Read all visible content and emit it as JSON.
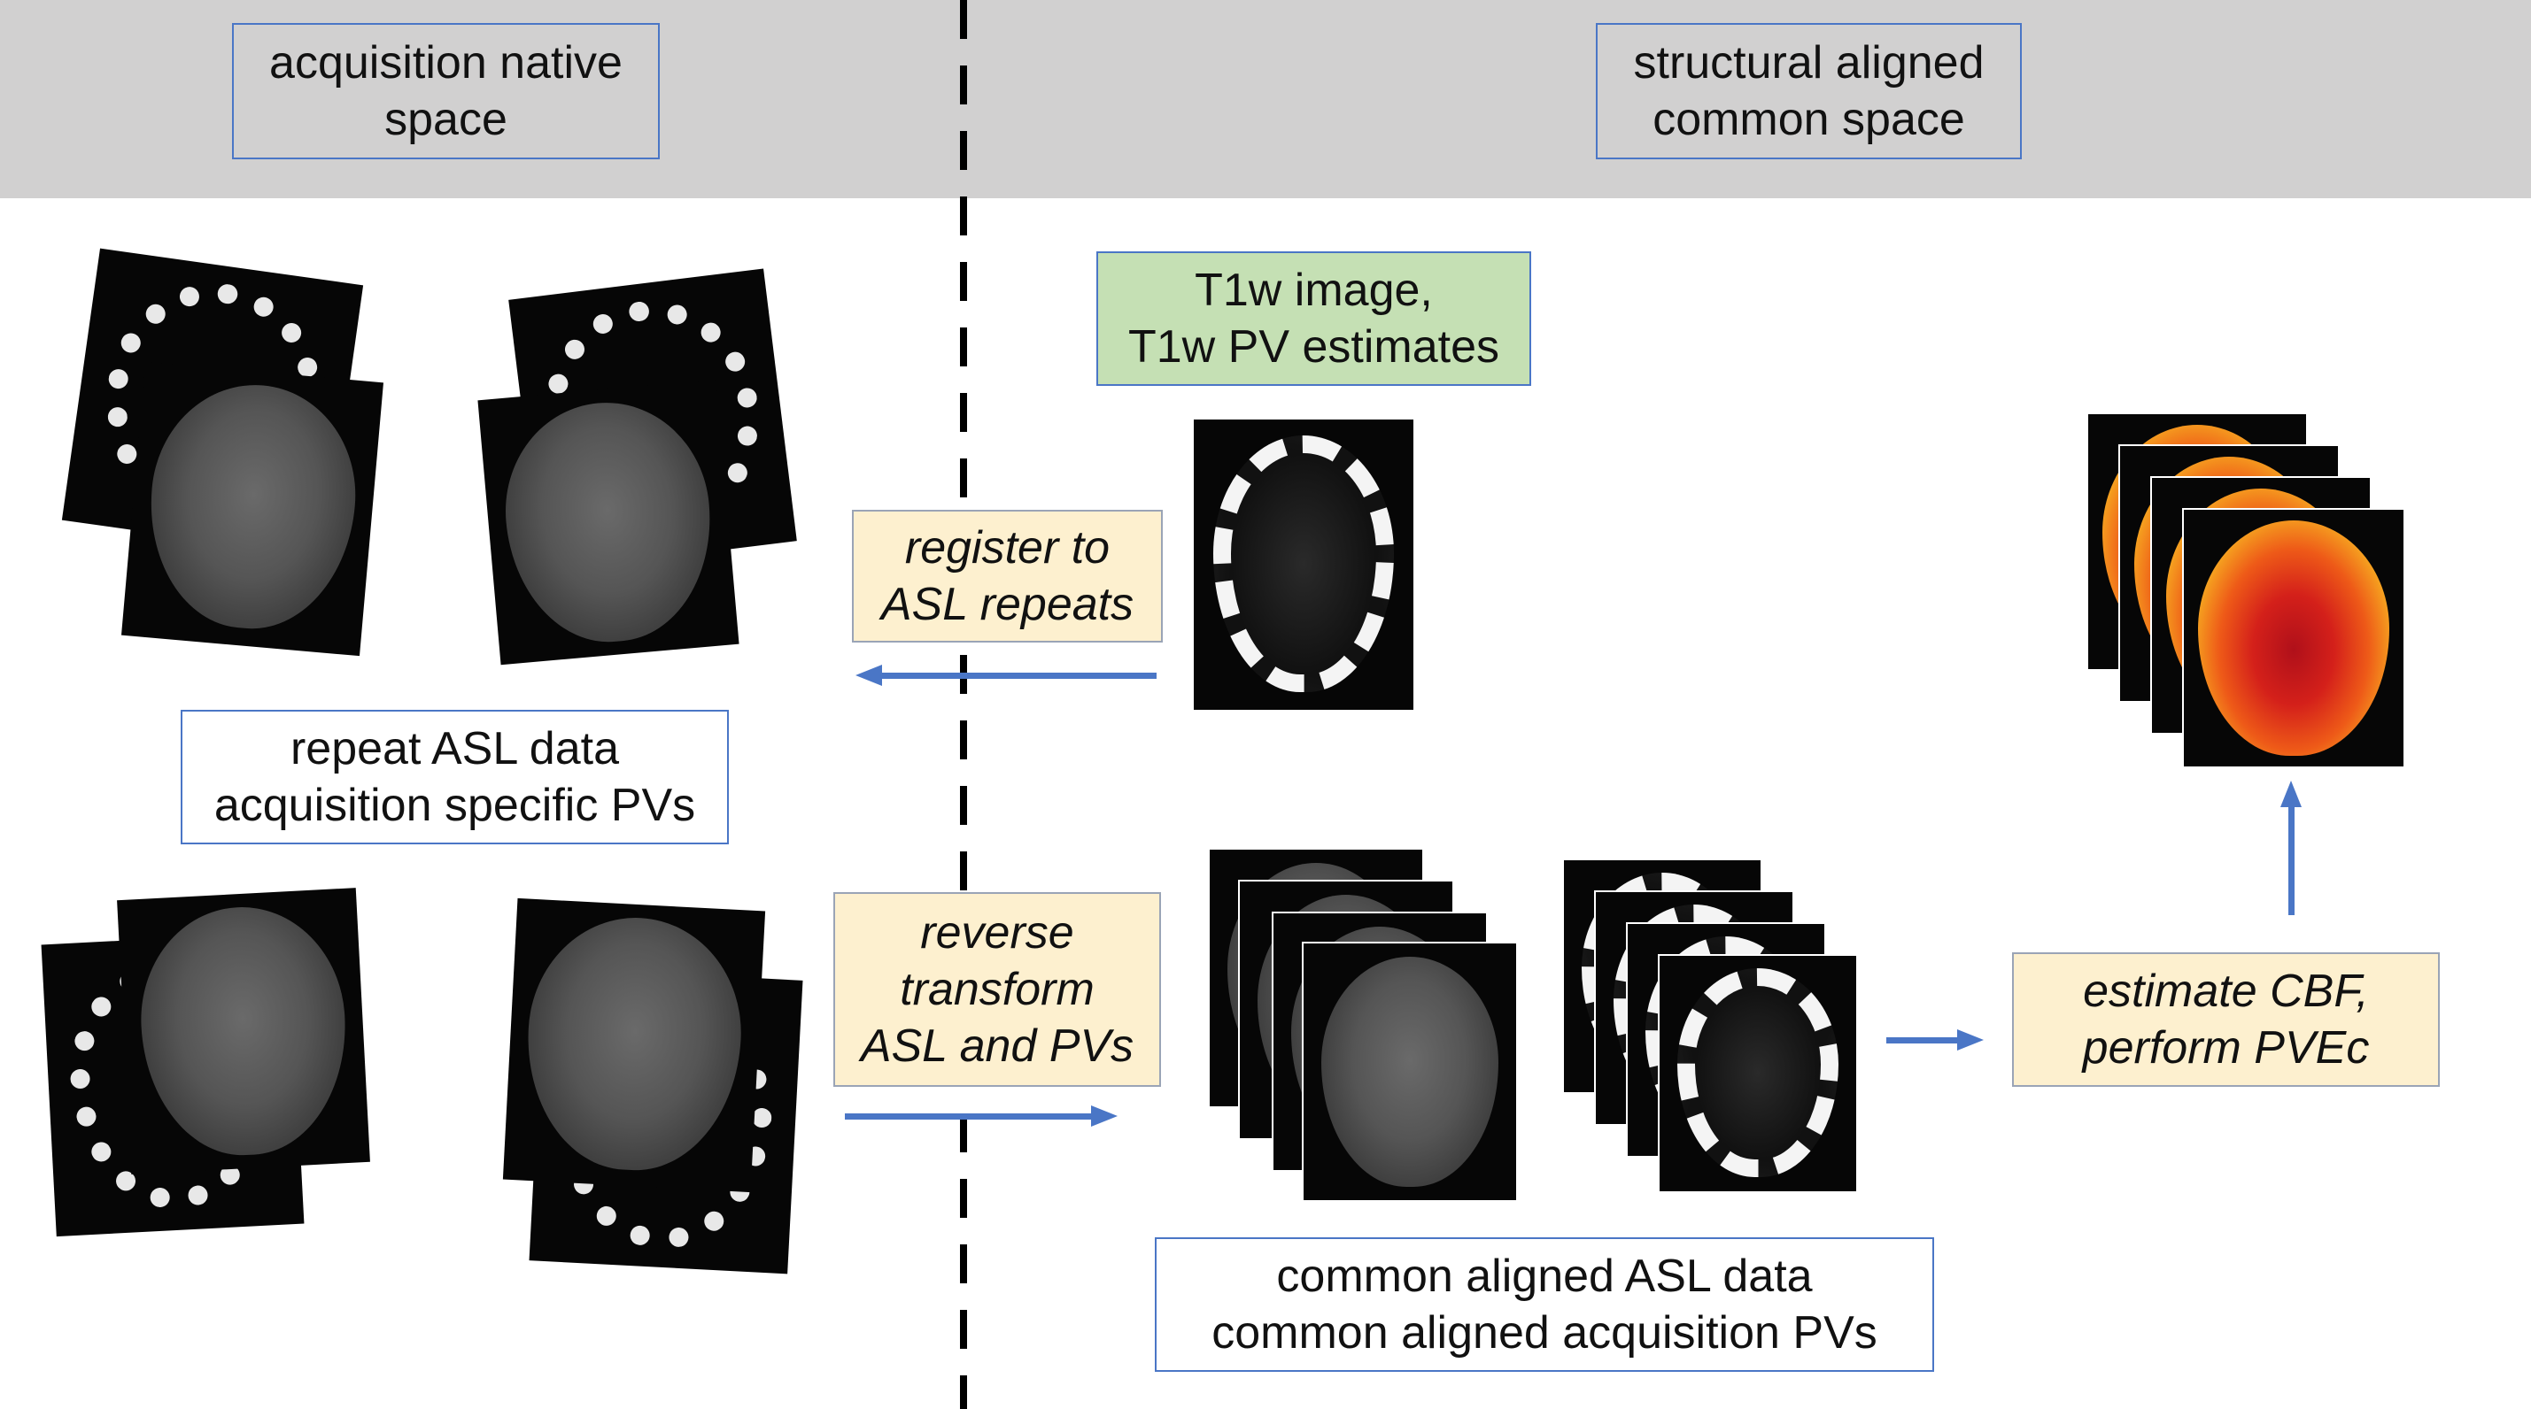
{
  "header": {
    "left_label": [
      "acquisition native",
      "space"
    ],
    "right_label": [
      "structural aligned",
      "common space"
    ]
  },
  "boxes": {
    "t1w": [
      "T1w image,",
      "T1w PV estimates"
    ],
    "register": [
      "register to",
      "ASL repeats"
    ],
    "repeat": [
      "repeat ASL data",
      "acquisition specific PVs"
    ],
    "reverse": [
      "reverse",
      "transform",
      "ASL and PVs"
    ],
    "estimate": [
      "estimate CBF,",
      "perform PVEc"
    ],
    "common": [
      "common aligned ASL data",
      "common aligned acquisition PVs"
    ]
  },
  "colors": {
    "header_band": "#d1d0d0",
    "box_border": "#4a76c6",
    "green_box": "#c5e0b4",
    "yellow_box": "#fdf0cf",
    "arrow": "#4a76c6"
  },
  "icons": [
    "brain-slice-image",
    "pv-map-image",
    "cbf-map-image",
    "arrow-left",
    "arrow-right",
    "arrow-up"
  ]
}
